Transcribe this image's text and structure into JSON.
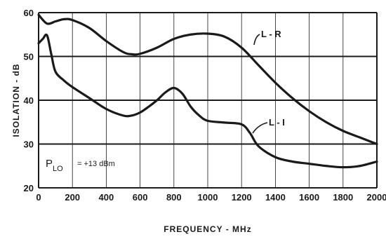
{
  "chart_data": {
    "type": "line",
    "xlabel": "FREQUENCY - MHz",
    "ylabel": "ISOLATION - dB",
    "xlim": [
      0,
      2000
    ],
    "ylim": [
      20,
      60
    ],
    "x_ticks": [
      0,
      200,
      400,
      600,
      800,
      1000,
      1200,
      1400,
      1600,
      1800,
      2000
    ],
    "y_ticks": [
      20,
      30,
      40,
      50,
      60
    ],
    "x_tick_labels": [
      "0",
      "200",
      "400",
      "600",
      "800",
      "1000",
      "1200",
      "1400",
      "1600",
      "1800",
      "2000"
    ],
    "y_tick_labels": [
      "20",
      "30",
      "40",
      "50",
      "60"
    ],
    "grid": true,
    "annotation": {
      "main": "P",
      "subscript": "LO",
      "value": "= +13 dBm"
    },
    "series": [
      {
        "name": "L - R",
        "x": [
          0,
          50,
          100,
          150,
          200,
          300,
          400,
          500,
          550,
          600,
          700,
          800,
          900,
          1000,
          1100,
          1200,
          1300,
          1400,
          1500,
          1600,
          1700,
          1800,
          1900,
          2000
        ],
        "y": [
          59.5,
          57.5,
          58.0,
          58.5,
          58.3,
          56.5,
          53.5,
          51.0,
          50.5,
          50.6,
          52.0,
          54.0,
          55.0,
          55.2,
          54.5,
          52.0,
          48.0,
          44.0,
          40.5,
          37.5,
          35.0,
          33.0,
          31.5,
          30.0
        ]
      },
      {
        "name": "L - I",
        "x": [
          0,
          25,
          50,
          75,
          100,
          150,
          200,
          300,
          400,
          500,
          550,
          600,
          650,
          700,
          750,
          800,
          850,
          900,
          950,
          1000,
          1100,
          1200,
          1250,
          1300,
          1400,
          1500,
          1600,
          1700,
          1800,
          1900,
          2000
        ],
        "y": [
          53.0,
          54.0,
          54.8,
          50.5,
          46.5,
          44.5,
          43.0,
          40.5,
          38.0,
          36.5,
          36.5,
          37.2,
          38.5,
          40.0,
          41.8,
          42.8,
          41.5,
          38.5,
          36.5,
          35.3,
          34.9,
          34.5,
          32.5,
          29.5,
          27.0,
          26.0,
          25.5,
          25.0,
          24.7,
          25.0,
          26.0
        ]
      }
    ]
  }
}
